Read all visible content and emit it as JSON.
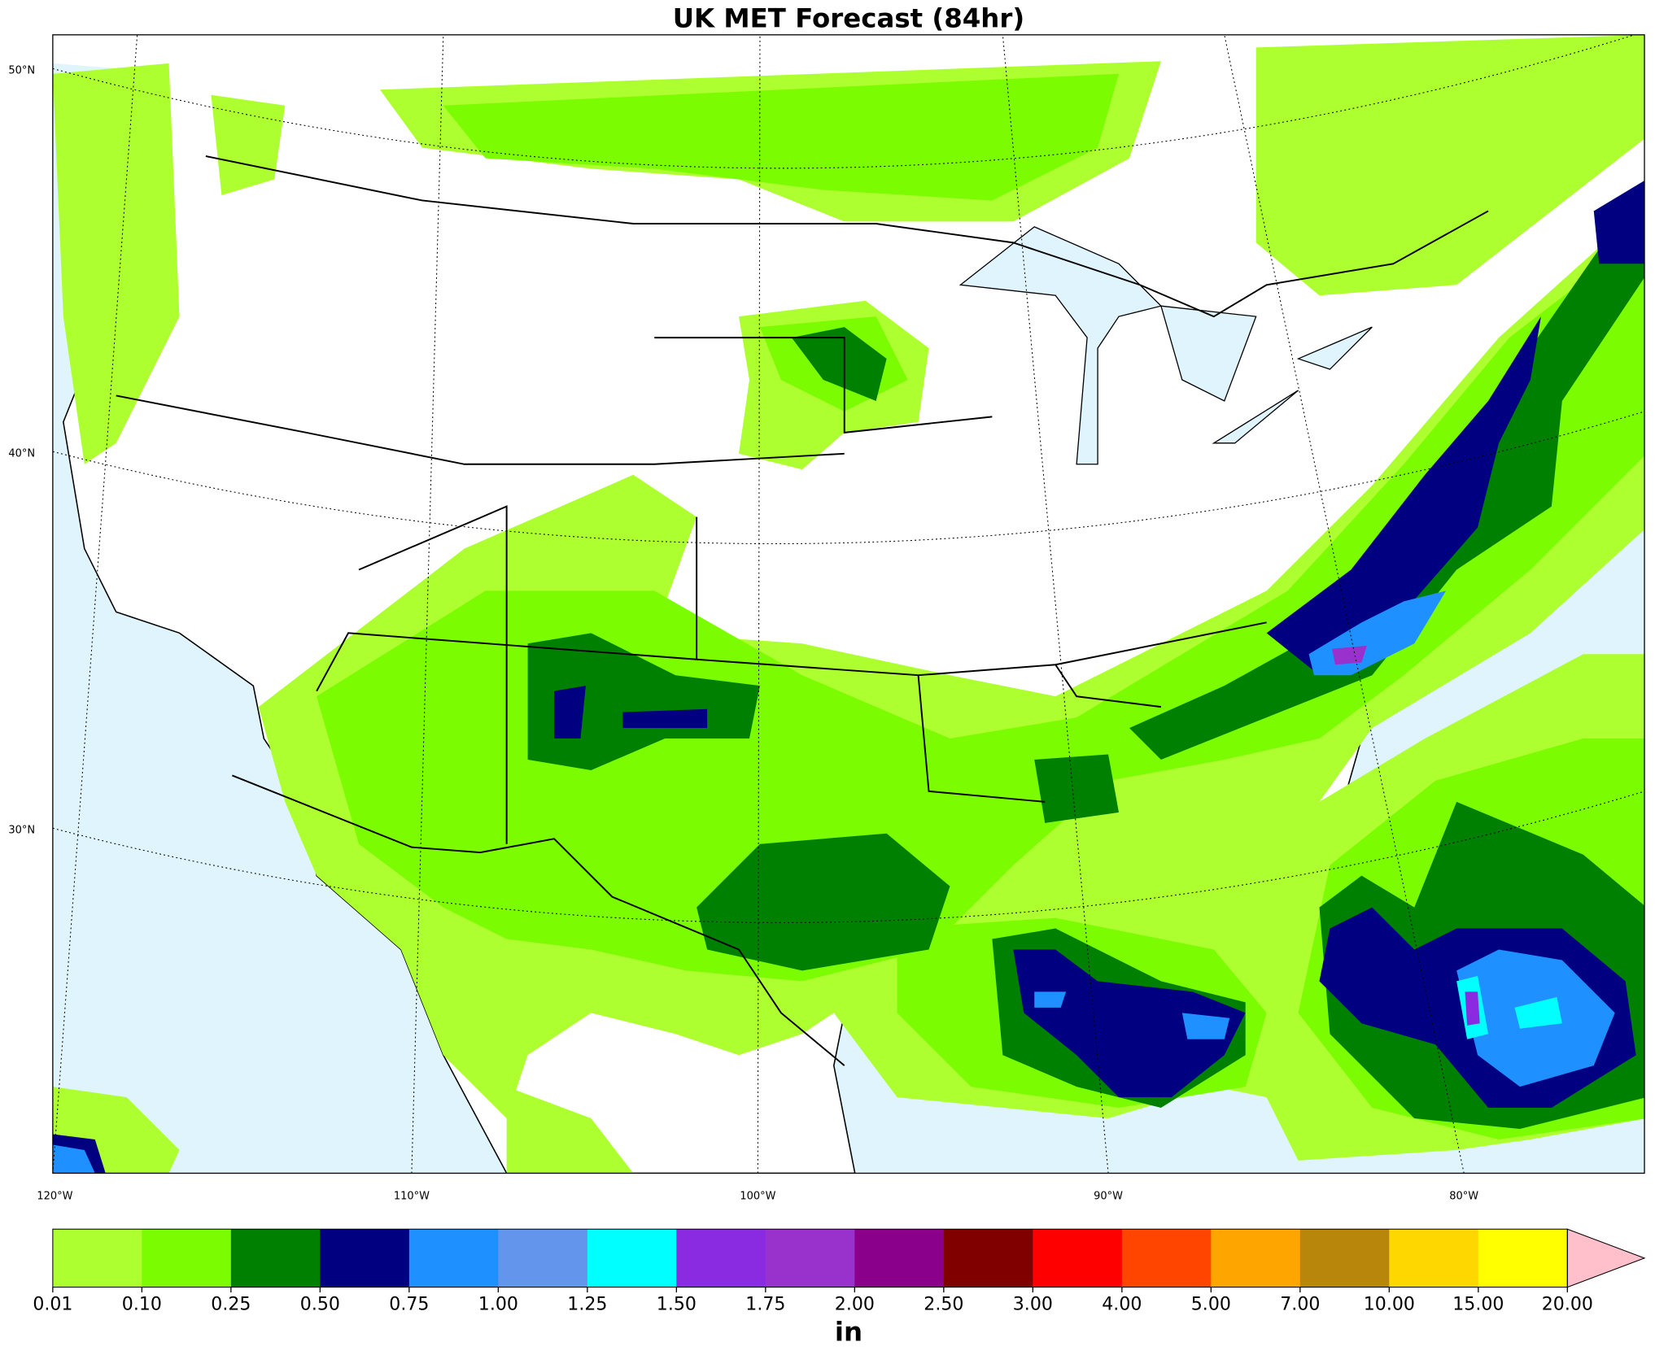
{
  "title": "UK MET Forecast (84hr)",
  "latitude_labels": [
    "50°N",
    "40°N",
    "30°N"
  ],
  "longitude_labels": [
    "120°W",
    "110°W",
    "100°W",
    "90°W",
    "80°W"
  ],
  "colorbar": {
    "levels": [
      0.01,
      {
        "value": 0.1,
        "label": "0.10"
      },
      0.25,
      {
        "value": 0.5,
        "label": "0.50"
      },
      0.75,
      {
        "value": 1,
        "label": "1.00"
      },
      1.25,
      {
        "value": 1.5,
        "label": "1.50"
      },
      1.75,
      {
        "value": 2,
        "label": "2.00"
      },
      {
        "value": 2.5,
        "label": "2.50"
      },
      {
        "value": 3,
        "label": "3.00"
      },
      {
        "value": 4,
        "label": "4.00"
      },
      {
        "value": 5,
        "label": "5.00"
      },
      {
        "value": 7,
        "label": "7.00"
      },
      {
        "value": 10,
        "label": "10.00"
      },
      {
        "value": 15,
        "label": "15.00"
      },
      {
        "value": 20,
        "label": "20.00"
      }
    ],
    "colors": [
      "#adff2f",
      "#7cfc00",
      "#008000",
      "#000080",
      "#1e90ff",
      "#6495ed",
      "#00ffff",
      "#8a2be2",
      "#9932cc",
      "#8b008b",
      "#800000",
      "#ff0000",
      "#ff4500",
      "#ffa500",
      "#b8860b",
      "#ffd700",
      "#ffff00"
    ],
    "extend_color": "#ffc0cb",
    "unit": "in"
  }
}
